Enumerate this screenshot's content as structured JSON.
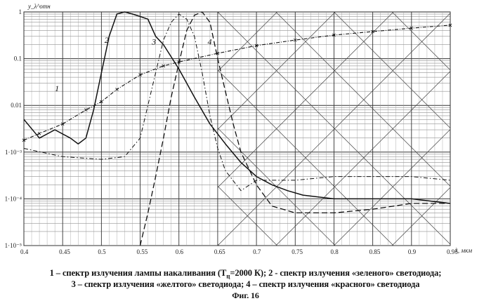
{
  "chart_data": {
    "type": "line",
    "title": "",
    "xlabel": "λ, мкм",
    "ylabel": "y_λ^отн",
    "x_ticks": [
      "0.4",
      "0.45",
      "0.5",
      "0.55",
      "0.6",
      "0.65",
      "0.7",
      "0.75",
      "0.8",
      "0.85",
      "0.9",
      "0.95"
    ],
    "y_ticks": [
      "1",
      "0.1",
      "0.01",
      "1·10⁻³",
      "1·10⁻⁴",
      "1·10⁻⁵"
    ],
    "xlim": [
      0.4,
      0.95
    ],
    "ylim": [
      1e-05,
      1
    ],
    "y_scale": "log",
    "grid": true,
    "series": [
      {
        "name": "1",
        "style": "dash-dot-cross",
        "x": [
          0.4,
          0.42,
          0.45,
          0.48,
          0.5,
          0.52,
          0.55,
          0.58,
          0.6,
          0.65,
          0.7,
          0.75,
          0.8,
          0.85,
          0.9,
          0.95
        ],
        "y": [
          0.0018,
          0.0025,
          0.004,
          0.008,
          0.012,
          0.022,
          0.045,
          0.07,
          0.085,
          0.13,
          0.19,
          0.25,
          0.32,
          0.38,
          0.45,
          0.52
        ]
      },
      {
        "name": "2",
        "style": "solid",
        "x": [
          0.4,
          0.42,
          0.44,
          0.46,
          0.47,
          0.48,
          0.49,
          0.5,
          0.51,
          0.52,
          0.53,
          0.54,
          0.55,
          0.56,
          0.57,
          0.58,
          0.6,
          0.62,
          0.64,
          0.66,
          0.68,
          0.7,
          0.72,
          0.74,
          0.76,
          0.8,
          0.85,
          0.9,
          0.95
        ],
        "y": [
          0.005,
          0.002,
          0.003,
          0.002,
          0.0015,
          0.002,
          0.008,
          0.05,
          0.3,
          0.9,
          1.0,
          0.9,
          0.8,
          0.7,
          0.3,
          0.2,
          0.06,
          0.015,
          0.004,
          0.0015,
          0.0006,
          0.0003,
          0.0002,
          0.00015,
          0.00012,
          0.0001,
          0.0001,
          0.0001,
          8e-05
        ]
      },
      {
        "name": "3",
        "style": "dash-dot",
        "x": [
          0.4,
          0.45,
          0.5,
          0.53,
          0.55,
          0.57,
          0.58,
          0.59,
          0.6,
          0.61,
          0.62,
          0.63,
          0.64,
          0.65,
          0.66,
          0.68,
          0.7,
          0.75,
          0.8,
          0.85,
          0.9,
          0.95
        ],
        "y": [
          0.0012,
          0.0008,
          0.0007,
          0.0008,
          0.002,
          0.05,
          0.25,
          0.6,
          0.9,
          0.7,
          0.3,
          0.05,
          0.006,
          0.0012,
          0.0004,
          0.00015,
          0.00025,
          0.00025,
          0.0003,
          0.0003,
          0.0003,
          0.00025
        ]
      },
      {
        "name": "4",
        "style": "dash",
        "x": [
          0.55,
          0.56,
          0.57,
          0.58,
          0.59,
          0.6,
          0.61,
          0.62,
          0.63,
          0.64,
          0.65,
          0.66,
          0.67,
          0.68,
          0.7,
          0.72,
          0.75,
          0.8,
          0.85,
          0.9,
          0.95
        ],
        "y": [
          1e-05,
          5e-05,
          0.0003,
          0.002,
          0.015,
          0.08,
          0.4,
          0.85,
          1.0,
          0.6,
          0.1,
          0.02,
          0.004,
          0.001,
          0.0002,
          7e-05,
          5e-05,
          5e-05,
          6e-05,
          8e-05,
          8e-05
        ]
      }
    ],
    "annotations": [
      {
        "text": "1",
        "x": 0.44,
        "y": 0.02
      },
      {
        "text": "2",
        "x": 0.504,
        "y": 0.22
      },
      {
        "text": "3",
        "x": 0.565,
        "y": 0.2
      },
      {
        "text": "4",
        "x": 0.637,
        "y": 0.2
      }
    ],
    "legend": [
      "1 – спектр излучения лампы накаливания (T",
      "ц",
      "=2000 К);   2 - спектр излучения «зеленого» светодиода;",
      "3 – спектр излучения «желтого» светодиода;     4 – спектр излучения «красного» светодиода"
    ],
    "figure_label": "Фиг. 16"
  }
}
